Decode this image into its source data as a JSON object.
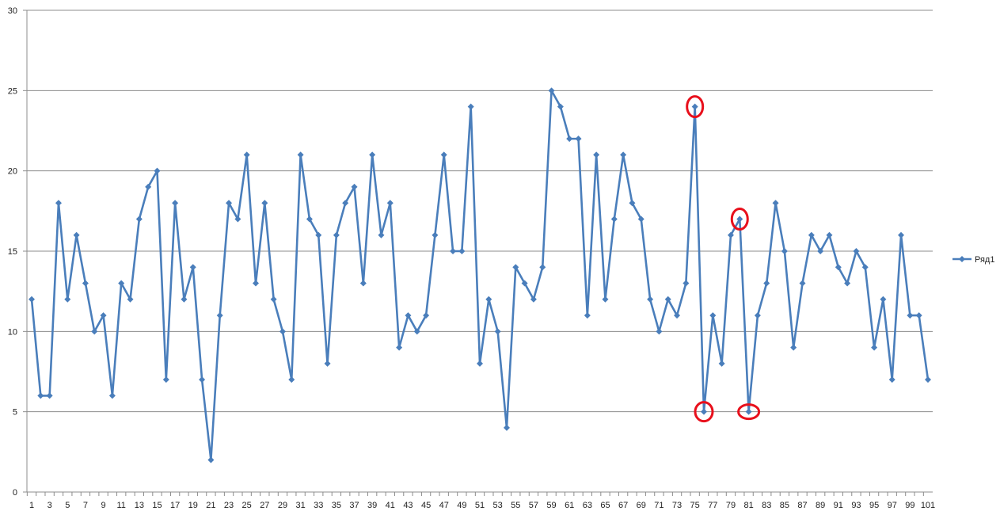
{
  "chart_data": {
    "type": "line",
    "title": "",
    "xlabel": "",
    "ylabel": "",
    "ylim": [
      0,
      30
    ],
    "yticks": [
      0,
      5,
      10,
      15,
      20,
      25,
      30
    ],
    "xticks": [
      1,
      3,
      5,
      7,
      9,
      11,
      13,
      15,
      17,
      19,
      21,
      23,
      25,
      27,
      29,
      31,
      33,
      35,
      37,
      39,
      41,
      43,
      45,
      47,
      49,
      51,
      53,
      55,
      57,
      59,
      61,
      63,
      65,
      67,
      69,
      71,
      73,
      75,
      77,
      79,
      81,
      83,
      85,
      87,
      89,
      91,
      93,
      95,
      97,
      99,
      101
    ],
    "x": [
      1,
      2,
      3,
      4,
      5,
      6,
      7,
      8,
      9,
      10,
      11,
      12,
      13,
      14,
      15,
      16,
      17,
      18,
      19,
      20,
      21,
      22,
      23,
      24,
      25,
      26,
      27,
      28,
      29,
      30,
      31,
      32,
      33,
      34,
      35,
      36,
      37,
      38,
      39,
      40,
      41,
      42,
      43,
      44,
      45,
      46,
      47,
      48,
      49,
      50,
      51,
      52,
      53,
      54,
      55,
      56,
      57,
      58,
      59,
      60,
      61,
      62,
      63,
      64,
      65,
      66,
      67,
      68,
      69,
      70,
      71,
      72,
      73,
      74,
      75,
      76,
      77,
      78,
      79,
      80,
      81,
      82,
      83,
      84,
      85,
      86,
      87,
      88,
      89,
      90,
      91,
      92,
      93,
      94,
      95,
      96,
      97,
      98,
      99,
      100,
      101
    ],
    "grid": true,
    "legend_position": "right",
    "series": [
      {
        "name": "Ряд1",
        "color": "#4a7ebb",
        "marker": "diamond",
        "values": [
          12,
          6,
          6,
          18,
          12,
          16,
          13,
          10,
          11,
          6,
          13,
          12,
          17,
          19,
          20,
          7,
          18,
          12,
          14,
          7,
          2,
          11,
          18,
          17,
          21,
          13,
          18,
          12,
          10,
          7,
          21,
          17,
          16,
          8,
          16,
          18,
          19,
          13,
          21,
          16,
          18,
          9,
          11,
          10,
          11,
          16,
          21,
          15,
          15,
          24,
          8,
          12,
          10,
          4,
          14,
          13,
          12,
          14,
          25,
          24,
          22,
          22,
          11,
          21,
          12,
          17,
          21,
          18,
          17,
          12,
          10,
          12,
          11,
          13,
          24,
          5,
          11,
          8,
          16,
          17,
          5,
          11,
          13,
          18,
          15,
          9,
          13,
          16,
          15,
          16,
          14,
          13,
          15,
          14,
          9,
          12,
          7,
          16,
          11,
          11,
          7
        ]
      }
    ],
    "annotations": [
      {
        "type": "circle",
        "x": 75,
        "y": 24,
        "color": "#e8101c"
      },
      {
        "type": "circle",
        "x": 76,
        "y": 5,
        "color": "#e8101c"
      },
      {
        "type": "circle",
        "x": 80,
        "y": 17,
        "color": "#e8101c"
      },
      {
        "type": "circle",
        "x": 81,
        "y": 5,
        "color": "#e8101c"
      }
    ]
  }
}
